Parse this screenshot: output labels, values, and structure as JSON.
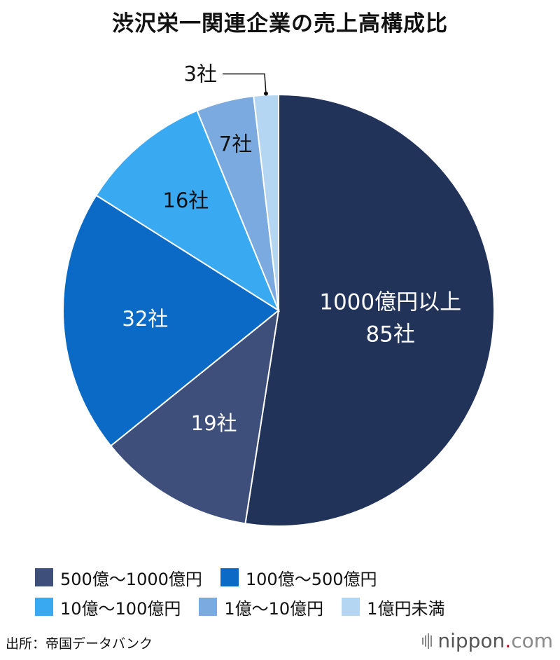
{
  "title": "渋沢栄一関連企業の売上高構成比",
  "source": "出所：帝国データバンク",
  "logo": {
    "name": "nippon",
    "dot": ".",
    "tld": "com"
  },
  "chart_data": {
    "type": "pie",
    "title": "渋沢栄一関連企業の売上高構成比",
    "unit": "社",
    "slices": [
      {
        "label": "1000億円以上",
        "value": 85,
        "value_label": "85社",
        "color": "#22335a"
      },
      {
        "label": "500億～1000億円",
        "value": 19,
        "value_label": "19社",
        "color": "#3f4f7c"
      },
      {
        "label": "100億～500億円",
        "value": 32,
        "value_label": "32社",
        "color": "#0a6ac6"
      },
      {
        "label": "10億～100億円",
        "value": 16,
        "value_label": "16社",
        "color": "#39a9f2"
      },
      {
        "label": "1億～10億円",
        "value": 7,
        "value_label": "7社",
        "color": "#7aaadf"
      },
      {
        "label": "1億円未満",
        "value": 3,
        "value_label": "3社",
        "color": "#b4d6f3"
      }
    ],
    "legend": {
      "placement": "bottom",
      "rows": [
        [
          "500億～1000億円",
          "100億～500億円"
        ],
        [
          "10億～100億円",
          "1億～10億円",
          "1億円未満"
        ]
      ]
    }
  }
}
